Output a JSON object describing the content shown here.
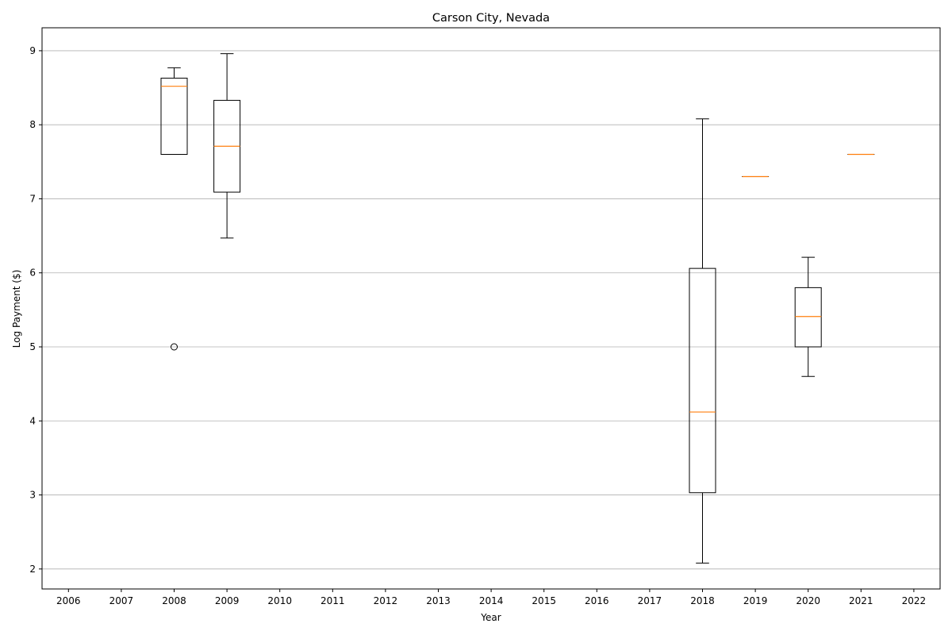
{
  "chart_data": {
    "type": "boxplot",
    "title": "Carson City, Nevada",
    "xlabel": "Year",
    "ylabel": "Log Payment ($)",
    "categories": [
      "2006",
      "2007",
      "2008",
      "2009",
      "2010",
      "2011",
      "2012",
      "2013",
      "2014",
      "2015",
      "2016",
      "2017",
      "2018",
      "2019",
      "2020",
      "2021",
      "2022"
    ],
    "yticks": [
      2,
      3,
      4,
      5,
      6,
      7,
      8,
      9
    ],
    "ylim": [
      1.73,
      9.31
    ],
    "grid": "y",
    "boxes": [
      {
        "year": "2008",
        "whisker_low": 7.6,
        "q1": 7.6,
        "median": 8.52,
        "q3": 8.63,
        "whisker_high": 8.77,
        "outliers": [
          5.0
        ]
      },
      {
        "year": "2009",
        "whisker_low": 6.47,
        "q1": 7.09,
        "median": 7.71,
        "q3": 8.33,
        "whisker_high": 8.96,
        "outliers": []
      },
      {
        "year": "2018",
        "whisker_low": 2.08,
        "q1": 3.03,
        "median": 4.12,
        "q3": 6.06,
        "whisker_high": 8.08,
        "outliers": []
      },
      {
        "year": "2019",
        "whisker_low": 7.3,
        "q1": 7.3,
        "median": 7.3,
        "q3": 7.3,
        "whisker_high": 7.3,
        "outliers": []
      },
      {
        "year": "2020",
        "whisker_low": 4.6,
        "q1": 5.0,
        "median": 5.41,
        "q3": 5.8,
        "whisker_high": 6.21,
        "outliers": []
      },
      {
        "year": "2021",
        "whisker_low": 7.6,
        "q1": 7.6,
        "median": 7.6,
        "q3": 7.6,
        "whisker_high": 7.6,
        "outliers": []
      }
    ],
    "colors": {
      "box": "#000000",
      "median": "#ff7f0e",
      "grid": "#b0b0b0"
    }
  }
}
